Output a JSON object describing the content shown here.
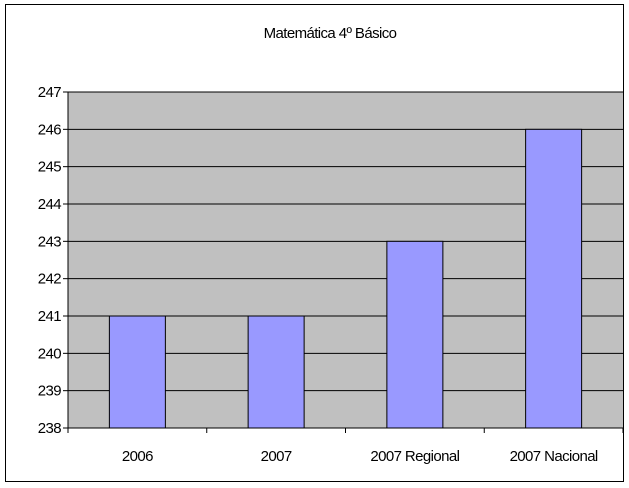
{
  "chart_data": {
    "type": "bar",
    "title": "Matemática 4º Básico",
    "categories": [
      "2006",
      "2007",
      "2007 Regional",
      "2007 Nacional"
    ],
    "values": [
      241,
      241,
      243,
      246
    ],
    "ylim": [
      238,
      247
    ],
    "ytick_step": 1,
    "yticks": [
      "238",
      "239",
      "240",
      "241",
      "242",
      "243",
      "244",
      "245",
      "246",
      "247"
    ],
    "xlabel": "",
    "ylabel": "",
    "grid": true,
    "legend": false,
    "colors": {
      "plot_background": "#c0c0c0",
      "bar_fill": "#9999ff",
      "bar_stroke": "#000000",
      "gridline": "#000000",
      "axis": "#000000"
    }
  }
}
